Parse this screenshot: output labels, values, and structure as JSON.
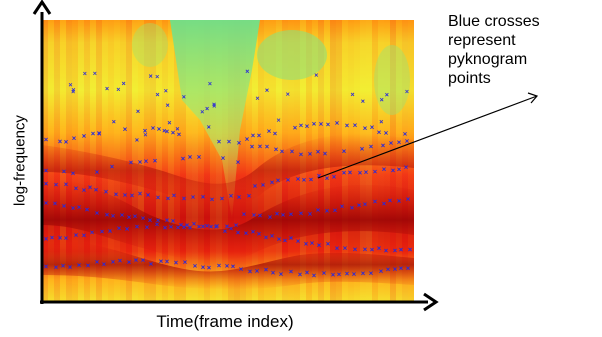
{
  "axes": {
    "ylabel": "log-frequency",
    "xlabel": "Time(frame index)"
  },
  "annotation": {
    "text": "Blue crosses\nrepresent\npyknogram\npoints"
  },
  "colors": {
    "cool": "#6fe08a",
    "mid": "#f2f22a",
    "warm": "#ff9a12",
    "hot": "#ec1c0c",
    "deep": "#a80808",
    "cross": "#2b2bd9"
  }
}
